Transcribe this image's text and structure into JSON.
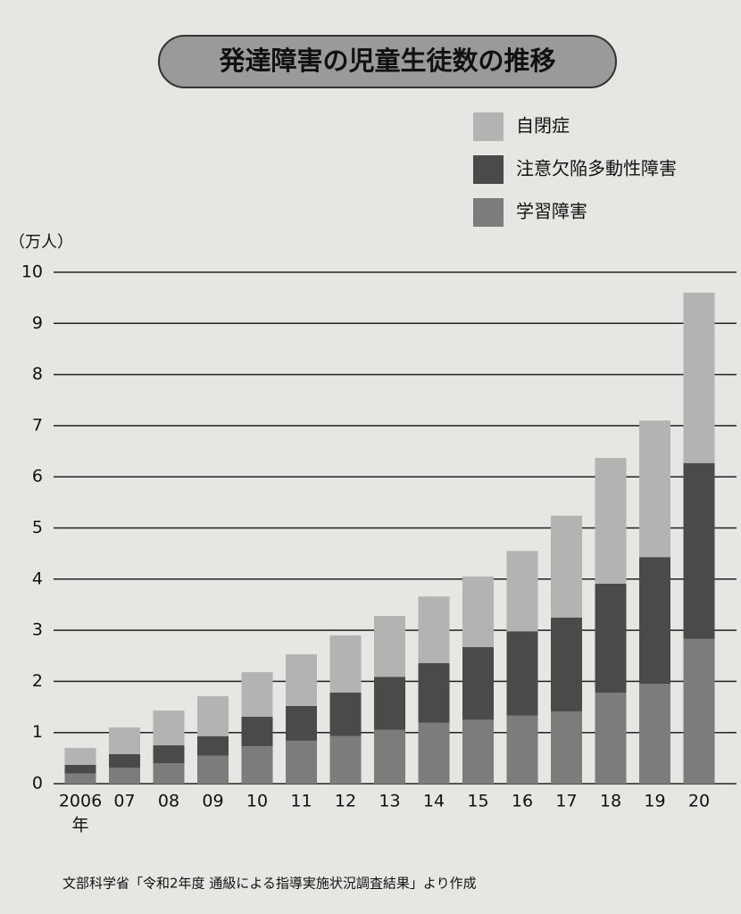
{
  "chart_data": {
    "type": "stacked_bar",
    "title": "発達障害の児童生徒数の推移",
    "y_label": "（万人）",
    "x_label": "年",
    "source": "文部科学省「令和2年度 通級による指導実施状況調査結果」より作成",
    "categories": [
      "2006",
      "07",
      "08",
      "09",
      "10",
      "11",
      "12",
      "13",
      "14",
      "15",
      "16",
      "17",
      "18",
      "19",
      "20"
    ],
    "series": [
      {
        "name": "自閉症",
        "color": "#b3b3b3",
        "values": [
          0.33,
          0.52,
          0.68,
          0.78,
          0.87,
          1.01,
          1.12,
          1.19,
          1.3,
          1.38,
          1.57,
          1.99,
          2.46,
          2.67,
          3.33
        ]
      },
      {
        "name": "注意欠陥多動性障害",
        "color": "#4a4a4a",
        "values": [
          0.17,
          0.27,
          0.35,
          0.38,
          0.58,
          0.68,
          0.85,
          1.04,
          1.17,
          1.42,
          1.65,
          1.84,
          2.13,
          2.48,
          3.44
        ]
      },
      {
        "name": "学習障害",
        "color": "#7c7c7c",
        "values": [
          0.2,
          0.31,
          0.4,
          0.55,
          0.73,
          0.84,
          0.93,
          1.05,
          1.19,
          1.25,
          1.33,
          1.41,
          1.78,
          1.95,
          2.83
        ]
      }
    ],
    "ylim": [
      0,
      10
    ],
    "yticks": [
      0,
      1,
      2,
      3,
      4,
      5,
      6,
      7,
      8,
      9,
      10
    ],
    "grid": true
  }
}
